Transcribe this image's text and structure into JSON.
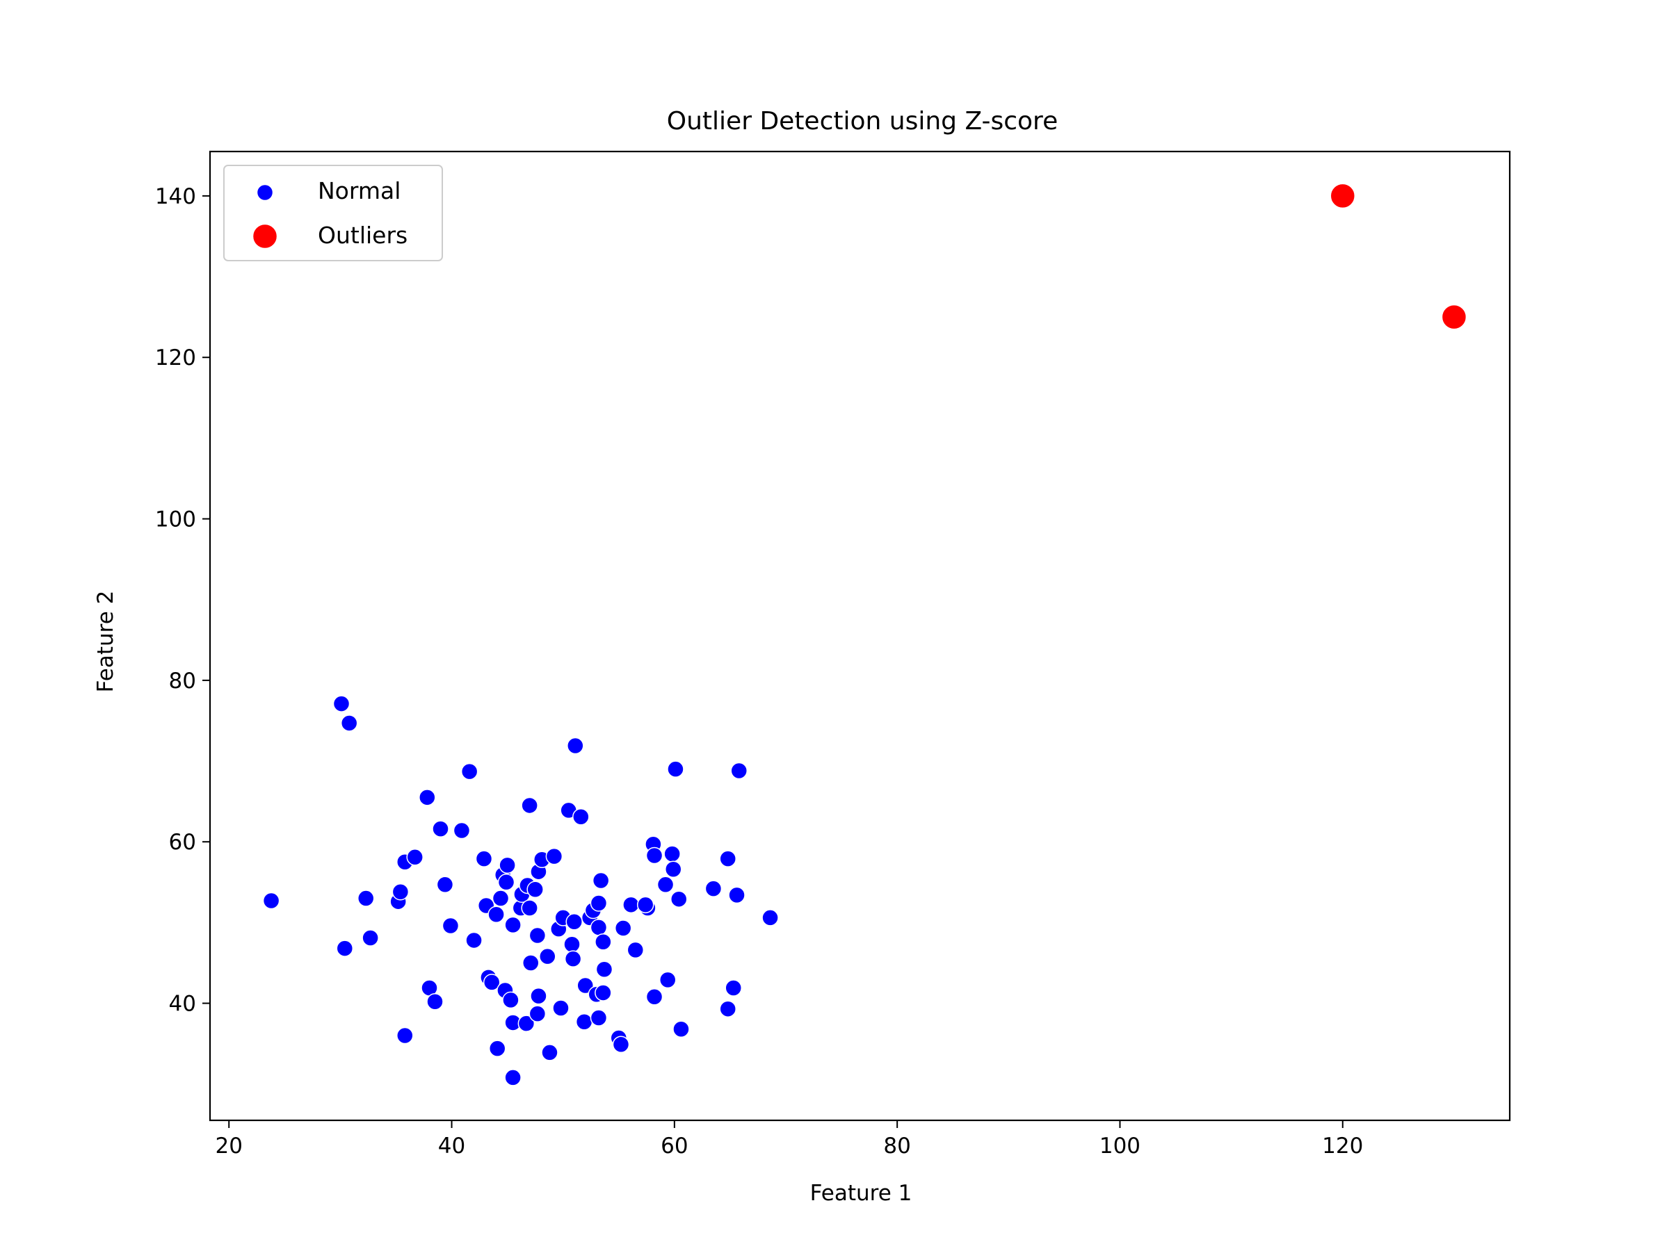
{
  "chart_data": {
    "type": "scatter",
    "title": "Outlier Detection using Z-score",
    "xlabel": "Feature 1",
    "ylabel": "Feature 2",
    "xlim": [
      18.3,
      135.0
    ],
    "ylim": [
      25.5,
      145.5
    ],
    "xticks": [
      20,
      40,
      60,
      80,
      100,
      120
    ],
    "yticks": [
      40,
      60,
      80,
      100,
      120,
      140
    ],
    "grid": false,
    "legend_position": "top-left",
    "series": [
      {
        "name": "Normal",
        "color": "#0000ff",
        "marker": "circle",
        "points": [
          [
            23.8,
            52.7
          ],
          [
            30.1,
            77.1
          ],
          [
            30.8,
            74.7
          ],
          [
            30.4,
            46.8
          ],
          [
            32.3,
            53.0
          ],
          [
            32.7,
            48.1
          ],
          [
            35.2,
            52.6
          ],
          [
            35.4,
            53.8
          ],
          [
            35.8,
            57.5
          ],
          [
            36.7,
            58.1
          ],
          [
            35.8,
            36.0
          ],
          [
            37.8,
            65.5
          ],
          [
            38.0,
            41.9
          ],
          [
            38.5,
            40.2
          ],
          [
            39.0,
            61.6
          ],
          [
            39.4,
            54.7
          ],
          [
            39.9,
            49.6
          ],
          [
            40.9,
            61.4
          ],
          [
            41.6,
            68.7
          ],
          [
            42.0,
            47.8
          ],
          [
            42.9,
            57.9
          ],
          [
            43.1,
            52.1
          ],
          [
            43.3,
            43.2
          ],
          [
            43.6,
            42.6
          ],
          [
            44.0,
            51.0
          ],
          [
            44.1,
            34.4
          ],
          [
            44.4,
            53.0
          ],
          [
            44.6,
            55.9
          ],
          [
            44.8,
            41.6
          ],
          [
            44.9,
            55.0
          ],
          [
            45.0,
            57.1
          ],
          [
            45.3,
            40.4
          ],
          [
            45.5,
            49.7
          ],
          [
            45.5,
            37.6
          ],
          [
            45.5,
            30.8
          ],
          [
            46.2,
            51.8
          ],
          [
            46.3,
            53.5
          ],
          [
            46.7,
            37.5
          ],
          [
            46.8,
            54.6
          ],
          [
            47.0,
            51.8
          ],
          [
            47.0,
            64.5
          ],
          [
            47.1,
            45.0
          ],
          [
            47.5,
            54.1
          ],
          [
            47.7,
            48.4
          ],
          [
            47.7,
            38.7
          ],
          [
            47.8,
            40.9
          ],
          [
            47.8,
            56.3
          ],
          [
            48.1,
            57.8
          ],
          [
            48.6,
            45.8
          ],
          [
            48.8,
            33.9
          ],
          [
            49.2,
            58.2
          ],
          [
            49.6,
            49.2
          ],
          [
            49.8,
            39.4
          ],
          [
            50.0,
            50.6
          ],
          [
            50.5,
            63.9
          ],
          [
            50.8,
            47.3
          ],
          [
            50.9,
            45.5
          ],
          [
            51.0,
            50.1
          ],
          [
            51.1,
            71.9
          ],
          [
            51.6,
            63.1
          ],
          [
            51.9,
            37.7
          ],
          [
            52.0,
            42.2
          ],
          [
            52.4,
            50.6
          ],
          [
            52.7,
            51.5
          ],
          [
            53.0,
            41.1
          ],
          [
            53.2,
            49.4
          ],
          [
            53.2,
            52.4
          ],
          [
            53.2,
            38.2
          ],
          [
            53.4,
            55.2
          ],
          [
            53.6,
            41.3
          ],
          [
            53.6,
            47.6
          ],
          [
            53.7,
            44.2
          ],
          [
            55.0,
            35.7
          ],
          [
            55.2,
            34.9
          ],
          [
            55.4,
            49.3
          ],
          [
            56.1,
            52.2
          ],
          [
            56.5,
            46.6
          ],
          [
            57.6,
            51.8
          ],
          [
            57.4,
            52.2
          ],
          [
            58.1,
            59.7
          ],
          [
            58.2,
            58.3
          ],
          [
            58.2,
            40.8
          ],
          [
            59.2,
            54.7
          ],
          [
            59.4,
            42.9
          ],
          [
            59.8,
            58.5
          ],
          [
            59.9,
            56.6
          ],
          [
            60.1,
            69.0
          ],
          [
            60.4,
            52.9
          ],
          [
            60.6,
            36.8
          ],
          [
            63.5,
            54.2
          ],
          [
            64.8,
            57.9
          ],
          [
            64.8,
            39.3
          ],
          [
            65.3,
            41.9
          ],
          [
            65.6,
            53.4
          ],
          [
            65.8,
            68.8
          ],
          [
            68.6,
            50.6
          ]
        ]
      },
      {
        "name": "Outliers",
        "color": "#ff0000",
        "marker": "circle",
        "points": [
          [
            120.0,
            140.0
          ],
          [
            130.0,
            125.0
          ]
        ]
      }
    ]
  }
}
